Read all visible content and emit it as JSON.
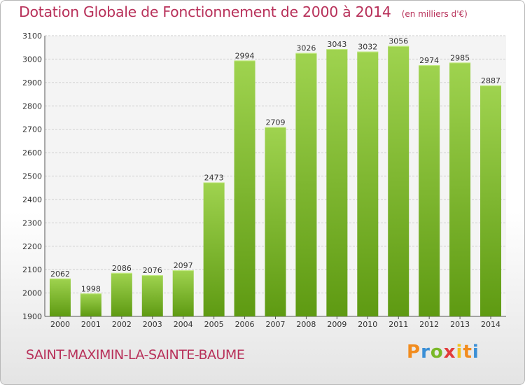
{
  "header": {
    "title": "Dotation Globale de Fonctionnement de 2000 à 2014",
    "subtitle": "(en milliers d'€)"
  },
  "footer": {
    "commune": "SAINT-MAXIMIN-LA-SAINTE-BAUME",
    "logo_text": "Proxiti"
  },
  "colors": {
    "title": "#b8315a",
    "bar_light": "#9fd34f",
    "bar_dark": "#5e9a12",
    "grid": "#cfcfcf",
    "logo": [
      "#f28c1e",
      "#3a8fd6",
      "#7ab828",
      "#e23b3b",
      "#f2c21e"
    ]
  },
  "chart_data": {
    "type": "bar",
    "title": "Dotation Globale de Fonctionnement de 2000 à 2014",
    "subtitle": "(en milliers d'€)",
    "xlabel": "",
    "ylabel": "",
    "categories": [
      "2000",
      "2001",
      "2002",
      "2003",
      "2004",
      "2005",
      "2006",
      "2007",
      "2008",
      "2009",
      "2010",
      "2011",
      "2012",
      "2013",
      "2014"
    ],
    "values": [
      2062,
      1998,
      2086,
      2076,
      2097,
      2473,
      2994,
      2709,
      3026,
      3043,
      3032,
      3056,
      2974,
      2985,
      2887
    ],
    "ylim": [
      1900,
      3100
    ],
    "yticks": [
      1900,
      2000,
      2100,
      2200,
      2300,
      2400,
      2500,
      2600,
      2700,
      2800,
      2900,
      3000,
      3100
    ],
    "grid": true,
    "legend": "none",
    "data_labels": true
  }
}
